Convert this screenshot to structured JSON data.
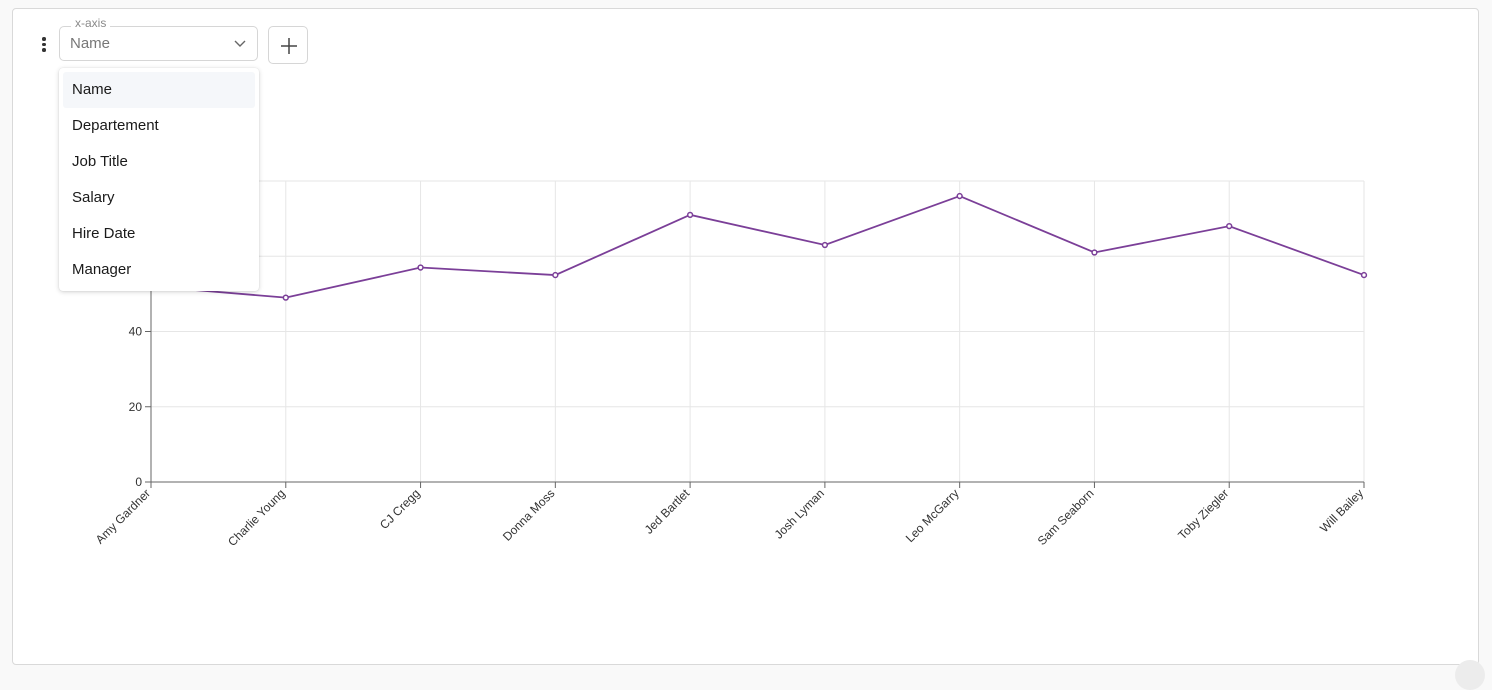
{
  "toolbar": {
    "menu_icon": "kebab-vertical-icon",
    "x_axis_label": "x-axis",
    "x_axis_value": "Name",
    "add_icon": "plus-icon"
  },
  "dropdown": {
    "options": [
      "Name",
      "Departement",
      "Job Title",
      "Salary",
      "Hire Date",
      "Manager"
    ],
    "highlighted_index": 0
  },
  "colors": {
    "line": "#7b3f98",
    "grid": "#e6e6e6",
    "axis": "#666666"
  },
  "chart_data": {
    "type": "line",
    "categories": [
      "Amy Gardner",
      "Charlie Young",
      "CJ Cregg",
      "Donna Moss",
      "Jed Bartlet",
      "Josh Lyman",
      "Leo McGarry",
      "Sam Seaborn",
      "Toby Ziegler",
      "Will Bailey"
    ],
    "series": [
      {
        "name": "",
        "values": [
          52,
          49,
          57,
          55,
          71,
          63,
          76,
          61,
          68,
          55
        ]
      }
    ],
    "yticks": [
      0,
      20,
      40,
      60,
      80
    ],
    "ylim": [
      0,
      80
    ],
    "grid": true,
    "title": "",
    "xlabel": "",
    "ylabel": ""
  }
}
